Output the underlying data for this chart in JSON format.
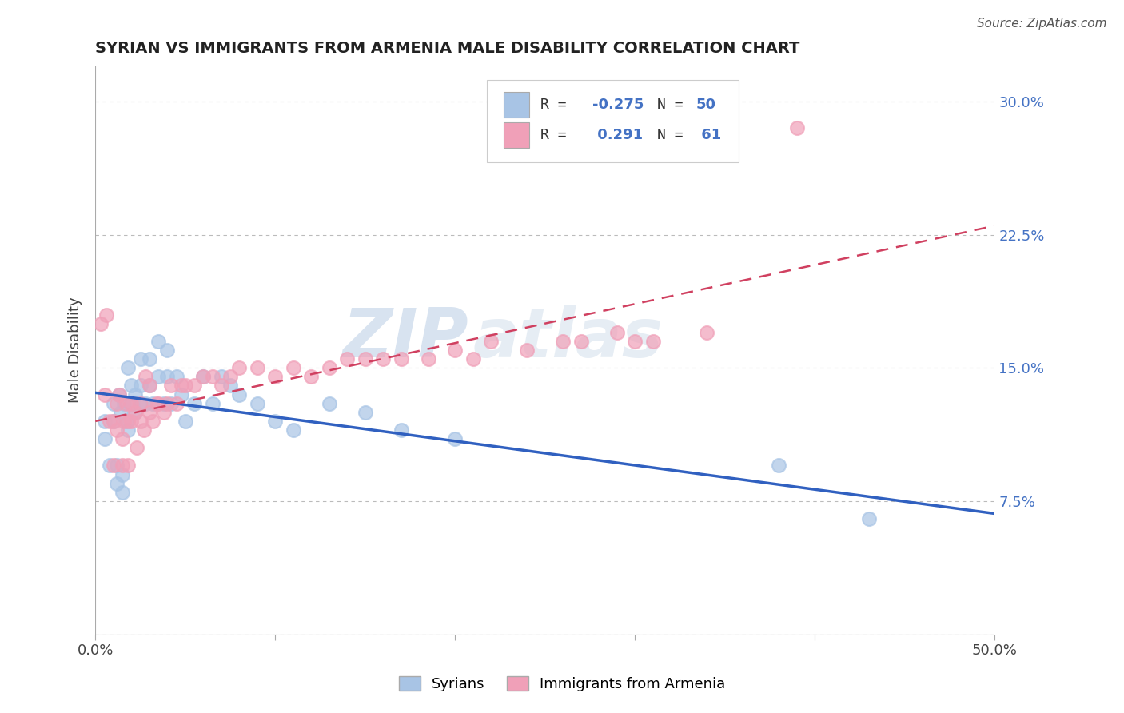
{
  "title": "SYRIAN VS IMMIGRANTS FROM ARMENIA MALE DISABILITY CORRELATION CHART",
  "source": "Source: ZipAtlas.com",
  "ylabel": "Male Disability",
  "xlim": [
    0.0,
    0.5
  ],
  "ylim": [
    0.0,
    0.32
  ],
  "xtick_vals": [
    0.0,
    0.1,
    0.2,
    0.3,
    0.4,
    0.5
  ],
  "xtick_labels": [
    "0.0%",
    "",
    "",
    "",
    "",
    "50.0%"
  ],
  "ytick_vals": [
    0.0,
    0.075,
    0.15,
    0.225,
    0.3
  ],
  "ytick_labels": [
    "",
    "7.5%",
    "15.0%",
    "22.5%",
    "30.0%"
  ],
  "color_syrians": "#a8c4e5",
  "color_armenians": "#f0a0b8",
  "line_color_syrians": "#3060c0",
  "line_color_armenians": "#d04060",
  "watermark_zip": "ZIP",
  "watermark_atlas": "atlas",
  "syrians_x": [
    0.005,
    0.005,
    0.008,
    0.01,
    0.01,
    0.012,
    0.012,
    0.013,
    0.014,
    0.015,
    0.015,
    0.016,
    0.017,
    0.018,
    0.018,
    0.02,
    0.02,
    0.022,
    0.022,
    0.025,
    0.025,
    0.025,
    0.028,
    0.03,
    0.03,
    0.032,
    0.035,
    0.035,
    0.038,
    0.04,
    0.04,
    0.042,
    0.045,
    0.048,
    0.05,
    0.055,
    0.06,
    0.065,
    0.07,
    0.075,
    0.08,
    0.09,
    0.1,
    0.11,
    0.13,
    0.15,
    0.17,
    0.2,
    0.38,
    0.43
  ],
  "syrians_y": [
    0.12,
    0.11,
    0.095,
    0.13,
    0.12,
    0.085,
    0.095,
    0.135,
    0.125,
    0.08,
    0.09,
    0.13,
    0.12,
    0.115,
    0.15,
    0.13,
    0.14,
    0.135,
    0.125,
    0.14,
    0.13,
    0.155,
    0.13,
    0.14,
    0.155,
    0.13,
    0.145,
    0.165,
    0.13,
    0.145,
    0.16,
    0.13,
    0.145,
    0.135,
    0.12,
    0.13,
    0.145,
    0.13,
    0.145,
    0.14,
    0.135,
    0.13,
    0.12,
    0.115,
    0.13,
    0.125,
    0.115,
    0.11,
    0.095,
    0.065
  ],
  "armenians_x": [
    0.003,
    0.005,
    0.006,
    0.008,
    0.01,
    0.01,
    0.012,
    0.012,
    0.013,
    0.015,
    0.015,
    0.016,
    0.017,
    0.018,
    0.018,
    0.02,
    0.02,
    0.022,
    0.023,
    0.025,
    0.025,
    0.027,
    0.028,
    0.03,
    0.03,
    0.032,
    0.034,
    0.035,
    0.038,
    0.04,
    0.042,
    0.045,
    0.048,
    0.05,
    0.055,
    0.06,
    0.065,
    0.07,
    0.075,
    0.08,
    0.09,
    0.1,
    0.11,
    0.12,
    0.13,
    0.14,
    0.15,
    0.16,
    0.17,
    0.185,
    0.2,
    0.21,
    0.22,
    0.24,
    0.26,
    0.27,
    0.29,
    0.3,
    0.31,
    0.34,
    0.39
  ],
  "armenians_y": [
    0.175,
    0.135,
    0.18,
    0.12,
    0.095,
    0.12,
    0.13,
    0.115,
    0.135,
    0.095,
    0.11,
    0.12,
    0.13,
    0.12,
    0.095,
    0.13,
    0.12,
    0.125,
    0.105,
    0.13,
    0.12,
    0.115,
    0.145,
    0.125,
    0.14,
    0.12,
    0.13,
    0.13,
    0.125,
    0.13,
    0.14,
    0.13,
    0.14,
    0.14,
    0.14,
    0.145,
    0.145,
    0.14,
    0.145,
    0.15,
    0.15,
    0.145,
    0.15,
    0.145,
    0.15,
    0.155,
    0.155,
    0.155,
    0.155,
    0.155,
    0.16,
    0.155,
    0.165,
    0.16,
    0.165,
    0.165,
    0.17,
    0.165,
    0.165,
    0.17,
    0.285
  ],
  "syrians_line_x": [
    0.0,
    0.5
  ],
  "syrians_line_y": [
    0.136,
    0.068
  ],
  "armenians_line_x": [
    0.0,
    0.5
  ],
  "armenians_line_y": [
    0.12,
    0.23
  ]
}
